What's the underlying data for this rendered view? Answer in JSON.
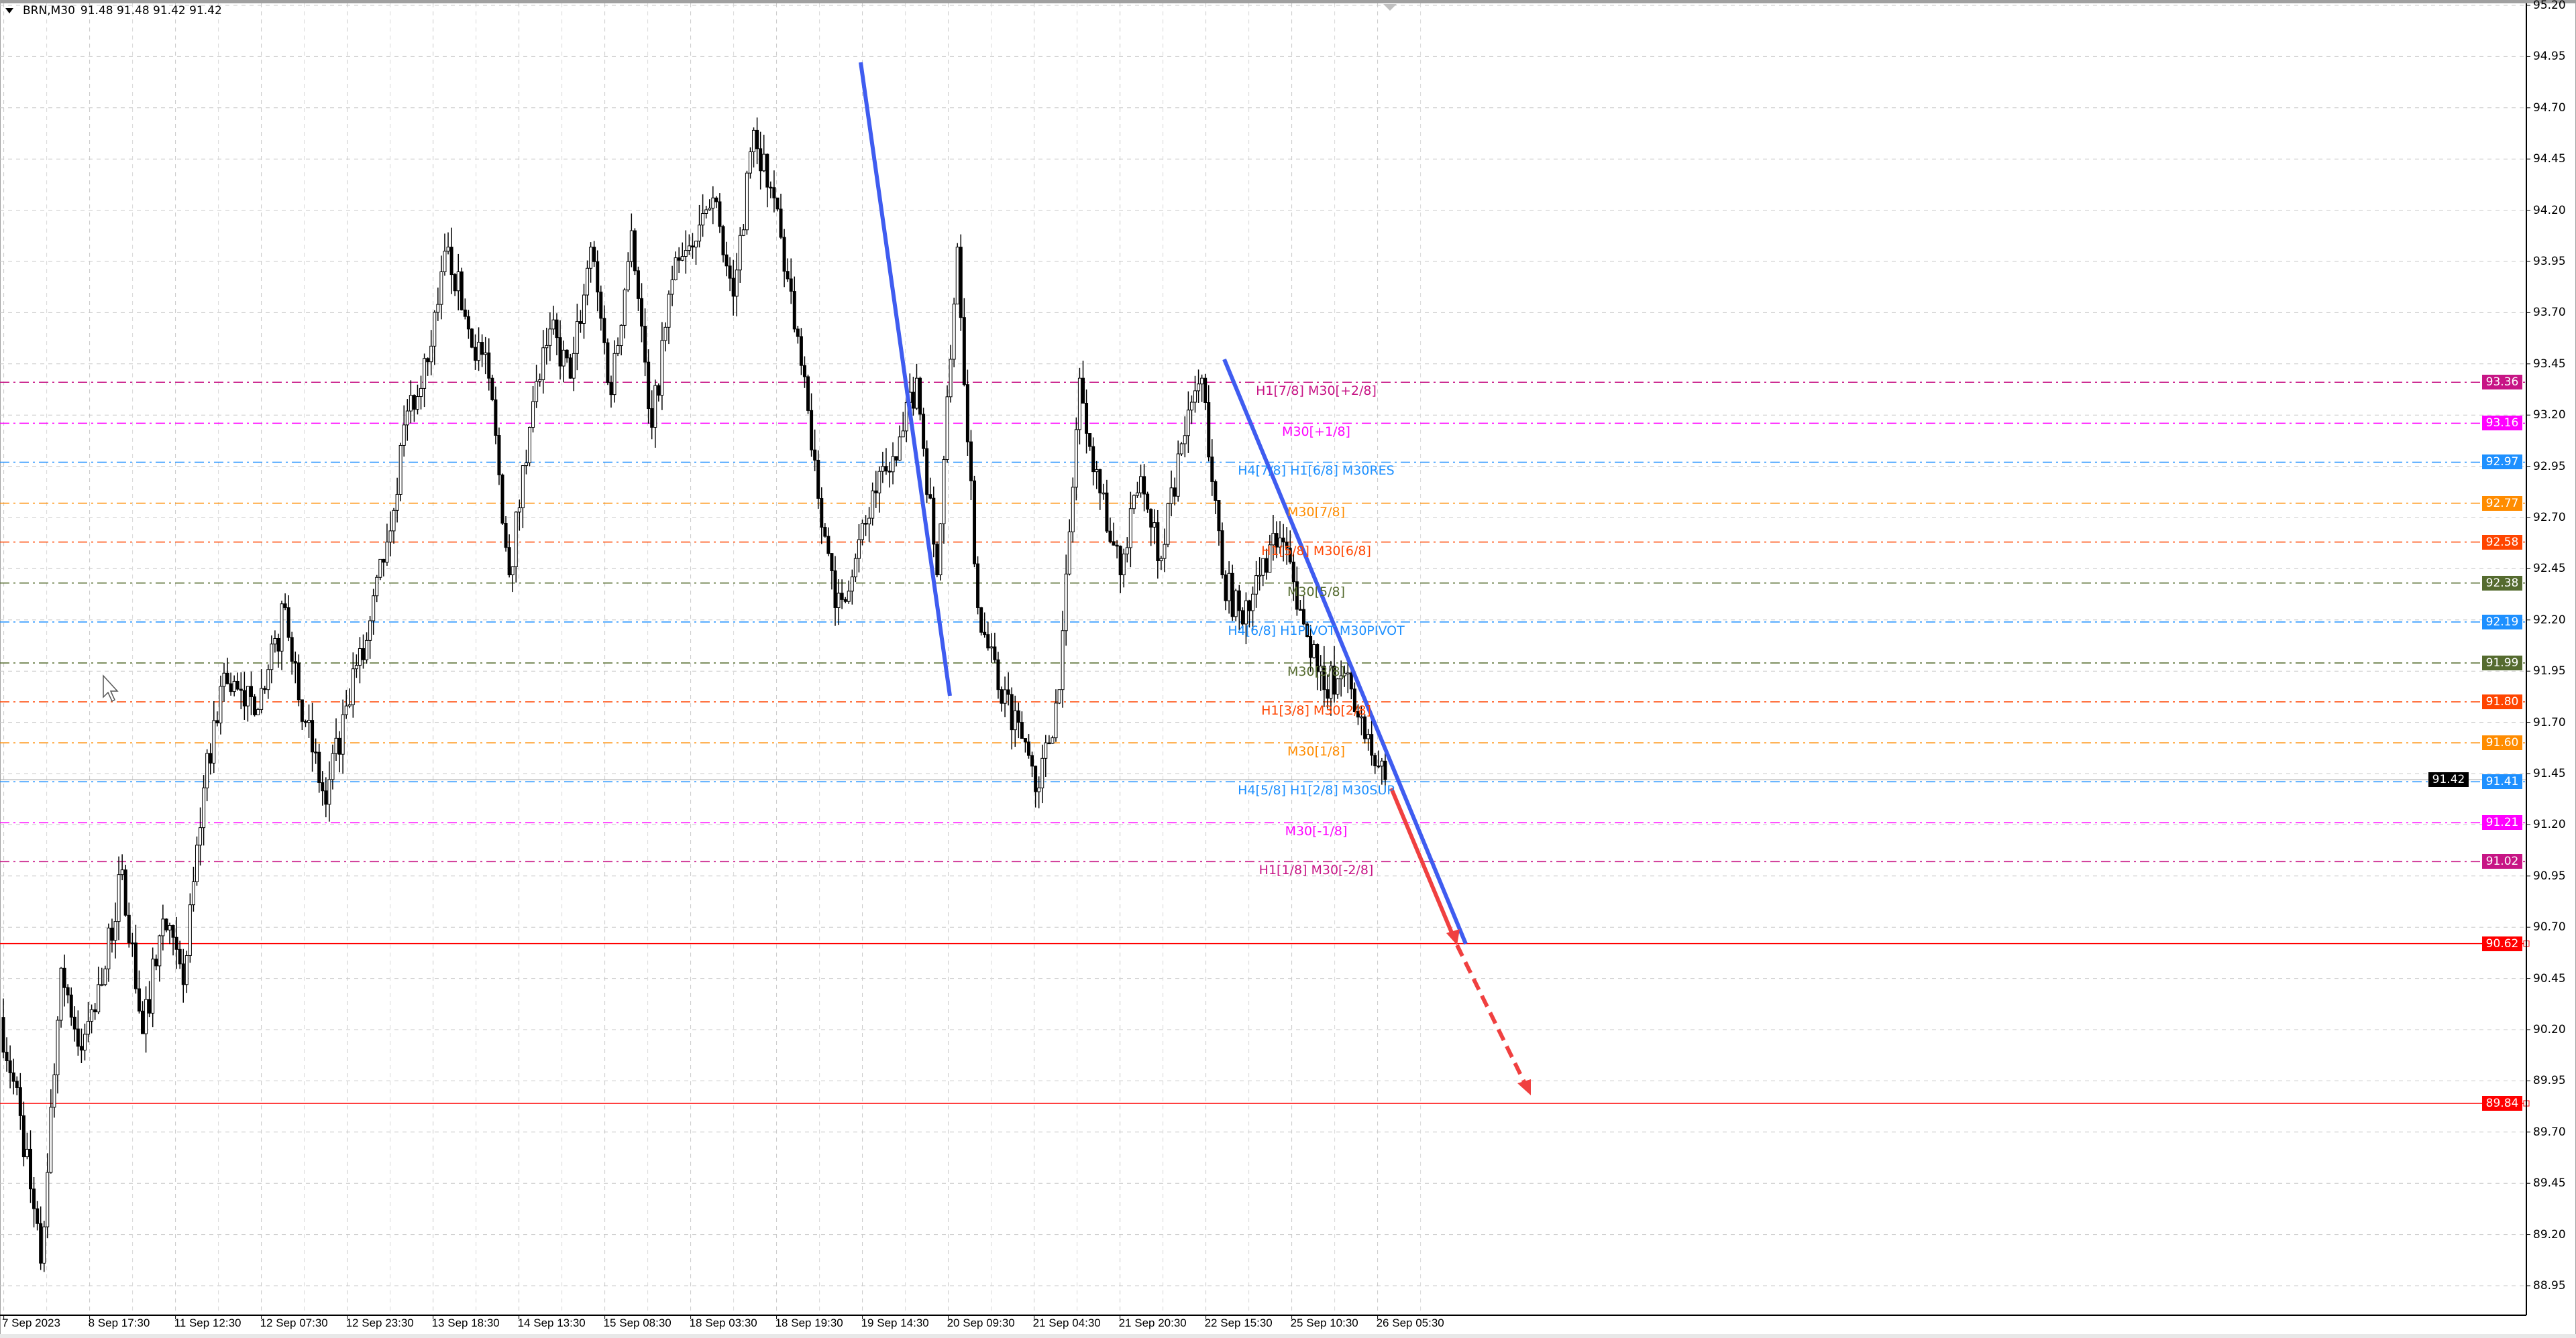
{
  "header": {
    "symbol": "BRN,M30",
    "ohlc": "91.48 91.48 91.42 91.42"
  },
  "current_price_label": "91.42",
  "chart_data": {
    "type": "candlestick",
    "symbol": "BRN",
    "timeframe": "M30",
    "ylim": [
      88.95,
      95.2
    ],
    "grid": true,
    "y_ticks": [
      "95.20",
      "94.95",
      "94.70",
      "94.45",
      "94.20",
      "93.95",
      "93.70",
      "93.45",
      "93.20",
      "92.95",
      "92.70",
      "92.45",
      "92.20",
      "91.95",
      "91.70",
      "91.45",
      "91.20",
      "90.95",
      "90.70",
      "90.45",
      "90.20",
      "89.95",
      "89.70",
      "89.45",
      "89.20",
      "88.95"
    ],
    "x_ticks": [
      "7 Sep 2023",
      "8 Sep 17:30",
      "11 Sep 12:30",
      "12 Sep 07:30",
      "12 Sep 23:30",
      "13 Sep 18:30",
      "14 Sep 13:30",
      "15 Sep 08:30",
      "18 Sep 03:30",
      "18 Sep 19:30",
      "19 Sep 14:30",
      "20 Sep 09:30",
      "21 Sep 04:30",
      "21 Sep 20:30",
      "22 Sep 15:30",
      "25 Sep 10:30",
      "26 Sep 05:30"
    ],
    "approx_closes": [
      90.26,
      89.78,
      89.06,
      90.5,
      90.1,
      90.42,
      90.98,
      90.18,
      90.74,
      90.42,
      91.38,
      91.94,
      91.78,
      91.86,
      92.26,
      91.7,
      91.3,
      91.78,
      92.1,
      92.58,
      93.22,
      93.46,
      94.02,
      93.62,
      93.38,
      92.42,
      93.14,
      93.62,
      93.38,
      94.02,
      93.3,
      94.1,
      93.14,
      93.86,
      94.02,
      94.26,
      93.78,
      94.59,
      94.26,
      93.62,
      92.98,
      92.26,
      92.5,
      92.82,
      92.98,
      93.38,
      92.42,
      94.02,
      92.26,
      91.86,
      91.7,
      91.38,
      91.86,
      93.38,
      92.82,
      92.42,
      92.9,
      92.5,
      93.06,
      93.38,
      92.42,
      92.18,
      92.5,
      92.58,
      92.18,
      91.86,
      91.94,
      91.62,
      91.42
    ],
    "levels": [
      {
        "price": 93.36,
        "label": "93.36",
        "text": "H1[7/8] M30[+2/8]",
        "color": "#c71585"
      },
      {
        "price": 93.16,
        "label": "93.16",
        "text": "M30[+1/8]",
        "color": "#ff00ff"
      },
      {
        "price": 92.97,
        "label": "92.97",
        "text": "H4[7/8] H1[6/8] M30RES",
        "color": "#1e90ff"
      },
      {
        "price": 92.77,
        "label": "92.77",
        "text": "M30[7/8]",
        "color": "#ff8c00"
      },
      {
        "price": 92.58,
        "label": "92.58",
        "text": "H1[5/8] M30[6/8]",
        "color": "#ff4500"
      },
      {
        "price": 92.38,
        "label": "92.38",
        "text": "M30[5/8]",
        "color": "#556b2f"
      },
      {
        "price": 92.19,
        "label": "92.19",
        "text": "H4[6/8] H1PIVOT M30PIVOT",
        "color": "#1e90ff"
      },
      {
        "price": 91.99,
        "label": "91.99",
        "text": "M30[3/8]",
        "color": "#556b2f"
      },
      {
        "price": 91.8,
        "label": "91.80",
        "text": "H1[3/8] M30[2/8]",
        "color": "#ff4500"
      },
      {
        "price": 91.6,
        "label": "91.60",
        "text": "M30[1/8]",
        "color": "#ff8c00"
      },
      {
        "price": 91.41,
        "label": "91.41",
        "text": "H4[5/8] H1[2/8] M30SUP",
        "color": "#1e90ff"
      },
      {
        "price": 91.21,
        "label": "91.21",
        "text": "M30[-1/8]",
        "color": "#ff00ff"
      },
      {
        "price": 91.02,
        "label": "91.02",
        "text": "H1[1/8] M30[-2/8]",
        "color": "#c71585"
      }
    ],
    "targets": [
      {
        "price": 90.62,
        "label": "90.62",
        "color": "#ff0000"
      },
      {
        "price": 89.84,
        "label": "89.84",
        "color": "#ff0000"
      }
    ],
    "trendline_color": "#3f5cf0",
    "arrow_color": "#f04040"
  }
}
